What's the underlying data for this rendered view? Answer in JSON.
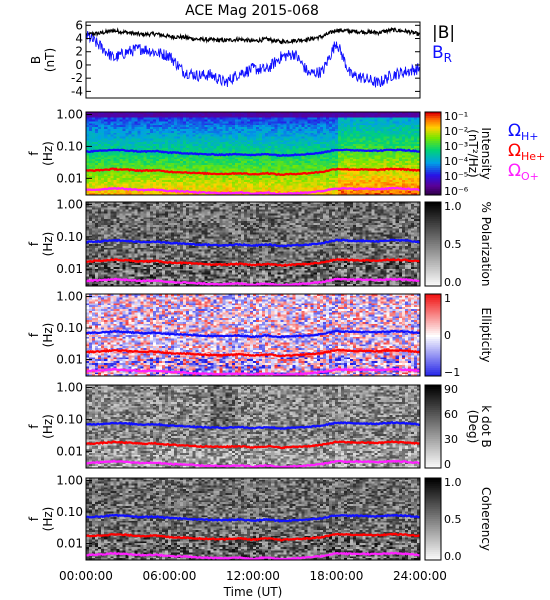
{
  "title": "ACE Mag 2015-068",
  "colors": {
    "black": "#000000",
    "blue": "#1010ff",
    "red": "#ff0000",
    "magenta": "#ff20ff"
  },
  "x_axis": {
    "label": "Time (UT)",
    "ticks": [
      "00:00:00",
      "06:00:00",
      "12:00:00",
      "18:00:00",
      "24:00:00"
    ],
    "range_hours": [
      0,
      24
    ]
  },
  "freq_axis": {
    "label": "f",
    "unit": "(Hz)",
    "ticks": [
      "1.00",
      "0.10",
      "0.01"
    ],
    "scale": "log",
    "range": [
      0.003,
      1.2
    ]
  },
  "chart_data": [
    {
      "panel": "field",
      "type": "line",
      "ylabel": "B",
      "yunit": "(nT)",
      "yticks": [
        "6",
        "4",
        "2",
        "0",
        "-2",
        "-4"
      ],
      "ylim": [
        -5,
        6.5
      ],
      "x_hours": [
        0,
        1,
        2,
        3,
        4,
        5,
        6,
        7,
        8,
        9,
        10,
        11,
        12,
        13,
        14,
        15,
        16,
        17,
        18,
        19,
        20,
        21,
        22,
        23,
        24
      ],
      "series": [
        {
          "name": "|B|",
          "color": "#000000",
          "values": [
            4.6,
            4.8,
            5.2,
            4.9,
            4.6,
            4.7,
            4.3,
            4.2,
            3.9,
            3.8,
            3.7,
            3.9,
            3.6,
            3.9,
            3.5,
            3.7,
            3.9,
            4.3,
            5.3,
            5.1,
            5.0,
            4.9,
            5.3,
            5.1,
            4.6
          ]
        },
        {
          "name": "B_R",
          "label_main": "B",
          "label_sub": "R",
          "color": "#1010ff",
          "values": [
            4.5,
            2.9,
            1.0,
            2.0,
            2.5,
            1.9,
            1.4,
            -1.0,
            -1.6,
            -1.5,
            -2.7,
            -1.3,
            -0.6,
            -0.7,
            1.2,
            1.7,
            -1.3,
            -1.0,
            3.5,
            -1.5,
            -2.0,
            -2.8,
            -1.5,
            -1.0,
            -0.5
          ]
        }
      ]
    },
    {
      "panel": "intensity",
      "type": "heatmap",
      "colorbar_label": "Intensity",
      "colorbar_unit": "(nT²/Hz)",
      "colorbar_ticks": [
        "10⁻¹",
        "10⁻²",
        "10⁻³",
        "10⁻⁴",
        "10⁻⁵",
        "10⁻⁶"
      ],
      "legend": [
        {
          "symbol": "Ω",
          "sub": "H+",
          "color": "#1010ff"
        },
        {
          "symbol": "Ω",
          "sub": "He+",
          "color": "#ff0000"
        },
        {
          "symbol": "Ω",
          "sub": "O+",
          "color": "#ff20ff"
        }
      ]
    },
    {
      "panel": "polarization",
      "type": "heatmap",
      "colorbar_label": "% Polarization",
      "colorbar_ticks": [
        "1.0",
        "0.5",
        "0.0"
      ]
    },
    {
      "panel": "ellipticity",
      "type": "heatmap",
      "colorbar_label": "Ellipticity",
      "colorbar_ticks": [
        "1",
        "0",
        "−1"
      ]
    },
    {
      "panel": "kdotb",
      "type": "heatmap",
      "colorbar_label": "k dot B",
      "colorbar_unit": "(Deg)",
      "colorbar_ticks": [
        "90",
        "60",
        "30",
        "0"
      ]
    },
    {
      "panel": "coherency",
      "type": "heatmap",
      "colorbar_label": "Coherency",
      "colorbar_ticks": [
        "1.0",
        "0.5",
        "0.0"
      ]
    }
  ],
  "gyrofrequency_lines_hz": {
    "x_hours": [
      0,
      1,
      2,
      3,
      4,
      5,
      6,
      7,
      8,
      9,
      10,
      11,
      12,
      13,
      14,
      15,
      16,
      17,
      18,
      19,
      20,
      21,
      22,
      23,
      24
    ],
    "H+": [
      0.069,
      0.072,
      0.078,
      0.074,
      0.069,
      0.071,
      0.064,
      0.062,
      0.058,
      0.056,
      0.055,
      0.058,
      0.053,
      0.058,
      0.052,
      0.055,
      0.058,
      0.064,
      0.079,
      0.076,
      0.075,
      0.073,
      0.079,
      0.076,
      0.069
    ],
    "He+": [
      0.0173,
      0.018,
      0.0195,
      0.0185,
      0.0173,
      0.0178,
      0.016,
      0.0155,
      0.0145,
      0.014,
      0.0138,
      0.0145,
      0.0133,
      0.0145,
      0.013,
      0.0138,
      0.0145,
      0.016,
      0.0198,
      0.019,
      0.0188,
      0.0183,
      0.0198,
      0.019,
      0.0173
    ],
    "O+": [
      0.0043,
      0.0045,
      0.0049,
      0.0046,
      0.0043,
      0.0044,
      0.004,
      0.0039,
      0.0036,
      0.0035,
      0.0034,
      0.0036,
      0.0033,
      0.0036,
      0.0032,
      0.0034,
      0.0036,
      0.004,
      0.0049,
      0.0047,
      0.0047,
      0.0046,
      0.0049,
      0.0047,
      0.0043
    ]
  }
}
